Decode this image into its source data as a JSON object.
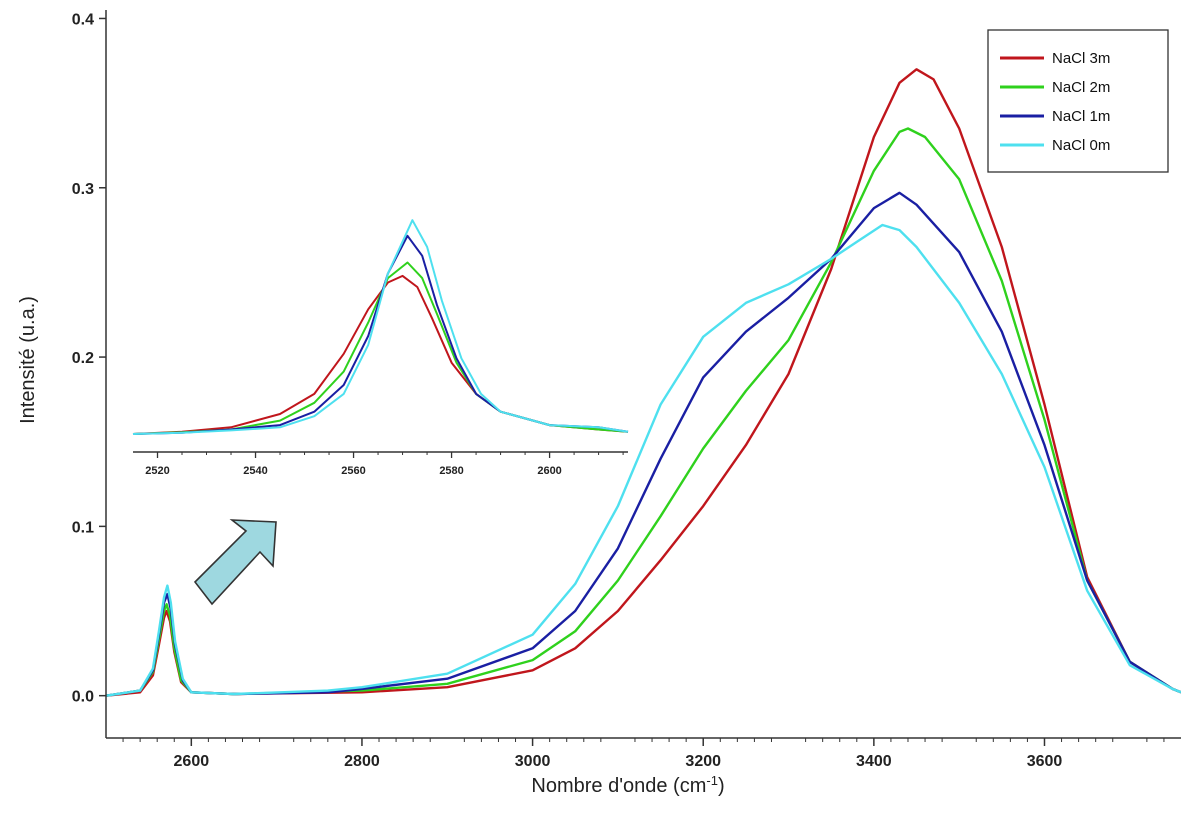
{
  "chart_data": [
    {
      "type": "line",
      "title": "",
      "xlabel": "Nombre d'onde (cm",
      "xlabel_superscript": "-1",
      "xlabel_suffix": ")",
      "ylabel": "Intensité (u.a.)",
      "xlim": [
        2500,
        3760
      ],
      "ylim": [
        -0.025,
        0.405
      ],
      "x_ticks": [
        2600,
        2800,
        3000,
        3200,
        3400,
        3600
      ],
      "x_tick_labels": [
        "2600",
        "2800",
        "3000",
        "3200",
        "3400",
        "3600"
      ],
      "y_ticks": [
        0.0,
        0.1,
        0.2,
        0.3,
        0.4
      ],
      "y_tick_labels": [
        "0.0",
        "0.1",
        "0.2",
        "0.3",
        "0.4"
      ],
      "grid": false,
      "legend_position": "top-right",
      "series": [
        {
          "name": "NaCl 3m",
          "color": "#c0161c",
          "points": [
            [
              2500,
              0.0
            ],
            [
              2540,
              0.002
            ],
            [
              2555,
              0.012
            ],
            [
              2562,
              0.03
            ],
            [
              2568,
              0.046
            ],
            [
              2571,
              0.05
            ],
            [
              2575,
              0.044
            ],
            [
              2580,
              0.026
            ],
            [
              2588,
              0.008
            ],
            [
              2600,
              0.002
            ],
            [
              2650,
              0.001
            ],
            [
              2800,
              0.002
            ],
            [
              2900,
              0.005
            ],
            [
              3000,
              0.015
            ],
            [
              3050,
              0.028
            ],
            [
              3100,
              0.05
            ],
            [
              3150,
              0.08
            ],
            [
              3200,
              0.112
            ],
            [
              3250,
              0.148
            ],
            [
              3300,
              0.19
            ],
            [
              3350,
              0.252
            ],
            [
              3400,
              0.33
            ],
            [
              3430,
              0.362
            ],
            [
              3450,
              0.37
            ],
            [
              3470,
              0.364
            ],
            [
              3500,
              0.335
            ],
            [
              3550,
              0.265
            ],
            [
              3600,
              0.172
            ],
            [
              3650,
              0.07
            ],
            [
              3700,
              0.02
            ],
            [
              3750,
              0.004
            ],
            [
              3760,
              0.002
            ]
          ]
        },
        {
          "name": "NaCl 2m",
          "color": "#2fd11d",
          "points": [
            [
              2500,
              0.0
            ],
            [
              2540,
              0.003
            ],
            [
              2555,
              0.014
            ],
            [
              2562,
              0.033
            ],
            [
              2568,
              0.05
            ],
            [
              2571,
              0.054
            ],
            [
              2575,
              0.047
            ],
            [
              2580,
              0.028
            ],
            [
              2588,
              0.009
            ],
            [
              2600,
              0.002
            ],
            [
              2650,
              0.001
            ],
            [
              2800,
              0.003
            ],
            [
              2900,
              0.007
            ],
            [
              3000,
              0.021
            ],
            [
              3050,
              0.038
            ],
            [
              3100,
              0.068
            ],
            [
              3150,
              0.106
            ],
            [
              3200,
              0.146
            ],
            [
              3250,
              0.18
            ],
            [
              3300,
              0.21
            ],
            [
              3350,
              0.256
            ],
            [
              3400,
              0.31
            ],
            [
              3430,
              0.333
            ],
            [
              3440,
              0.335
            ],
            [
              3460,
              0.33
            ],
            [
              3500,
              0.305
            ],
            [
              3550,
              0.245
            ],
            [
              3600,
              0.163
            ],
            [
              3650,
              0.068
            ],
            [
              3700,
              0.02
            ],
            [
              3750,
              0.004
            ],
            [
              3760,
              0.002
            ]
          ]
        },
        {
          "name": "NaCl 1m",
          "color": "#1a1fa3",
          "points": [
            [
              2500,
              0.0
            ],
            [
              2540,
              0.003
            ],
            [
              2555,
              0.015
            ],
            [
              2562,
              0.036
            ],
            [
              2568,
              0.055
            ],
            [
              2572,
              0.06
            ],
            [
              2576,
              0.051
            ],
            [
              2581,
              0.03
            ],
            [
              2590,
              0.009
            ],
            [
              2600,
              0.002
            ],
            [
              2650,
              0.001
            ],
            [
              2760,
              0.002
            ],
            [
              2800,
              0.004
            ],
            [
              2900,
              0.01
            ],
            [
              3000,
              0.028
            ],
            [
              3050,
              0.05
            ],
            [
              3100,
              0.087
            ],
            [
              3150,
              0.14
            ],
            [
              3200,
              0.188
            ],
            [
              3250,
              0.215
            ],
            [
              3300,
              0.235
            ],
            [
              3350,
              0.258
            ],
            [
              3400,
              0.288
            ],
            [
              3430,
              0.297
            ],
            [
              3450,
              0.29
            ],
            [
              3500,
              0.262
            ],
            [
              3550,
              0.215
            ],
            [
              3600,
              0.148
            ],
            [
              3650,
              0.068
            ],
            [
              3700,
              0.02
            ],
            [
              3750,
              0.004
            ],
            [
              3760,
              0.002
            ]
          ]
        },
        {
          "name": "NaCl 0m",
          "color": "#4ee0ef",
          "points": [
            [
              2500,
              0.0
            ],
            [
              2540,
              0.003
            ],
            [
              2555,
              0.016
            ],
            [
              2562,
              0.038
            ],
            [
              2568,
              0.058
            ],
            [
              2572,
              0.065
            ],
            [
              2576,
              0.055
            ],
            [
              2581,
              0.032
            ],
            [
              2590,
              0.01
            ],
            [
              2600,
              0.002
            ],
            [
              2650,
              0.001
            ],
            [
              2760,
              0.003
            ],
            [
              2800,
              0.005
            ],
            [
              2900,
              0.013
            ],
            [
              3000,
              0.036
            ],
            [
              3050,
              0.066
            ],
            [
              3100,
              0.112
            ],
            [
              3150,
              0.172
            ],
            [
              3200,
              0.212
            ],
            [
              3250,
              0.232
            ],
            [
              3300,
              0.243
            ],
            [
              3350,
              0.258
            ],
            [
              3380,
              0.268
            ],
            [
              3410,
              0.278
            ],
            [
              3430,
              0.275
            ],
            [
              3450,
              0.265
            ],
            [
              3500,
              0.232
            ],
            [
              3550,
              0.19
            ],
            [
              3600,
              0.135
            ],
            [
              3650,
              0.062
            ],
            [
              3700,
              0.018
            ],
            [
              3750,
              0.004
            ],
            [
              3760,
              0.002
            ]
          ]
        }
      ]
    },
    {
      "type": "line",
      "title": "",
      "xlim": [
        2515,
        2616
      ],
      "ylim": [
        0.0,
        0.066
      ],
      "x_ticks": [
        2520,
        2540,
        2560,
        2580,
        2600
      ],
      "x_tick_labels": [
        "2520",
        "2540",
        "2560",
        "2580",
        "2600"
      ],
      "grid": false,
      "series": [
        {
          "name": "NaCl 3m",
          "color": "#c0161c",
          "points": [
            [
              2515,
              0.0
            ],
            [
              2525,
              0.0005
            ],
            [
              2535,
              0.0015
            ],
            [
              2545,
              0.0045
            ],
            [
              2552,
              0.009
            ],
            [
              2558,
              0.018
            ],
            [
              2563,
              0.028
            ],
            [
              2567,
              0.034
            ],
            [
              2570,
              0.0355
            ],
            [
              2573,
              0.033
            ],
            [
              2576,
              0.026
            ],
            [
              2580,
              0.016
            ],
            [
              2585,
              0.009
            ],
            [
              2590,
              0.005
            ],
            [
              2600,
              0.002
            ],
            [
              2610,
              0.001
            ],
            [
              2616,
              0.0005
            ]
          ]
        },
        {
          "name": "NaCl 2m",
          "color": "#2fd11d",
          "points": [
            [
              2515,
              0.0
            ],
            [
              2525,
              0.0004
            ],
            [
              2535,
              0.001
            ],
            [
              2545,
              0.003
            ],
            [
              2552,
              0.007
            ],
            [
              2558,
              0.014
            ],
            [
              2563,
              0.025
            ],
            [
              2567,
              0.035
            ],
            [
              2571,
              0.0385
            ],
            [
              2574,
              0.035
            ],
            [
              2577,
              0.027
            ],
            [
              2581,
              0.016
            ],
            [
              2585,
              0.009
            ],
            [
              2590,
              0.005
            ],
            [
              2600,
              0.002
            ],
            [
              2610,
              0.001
            ],
            [
              2616,
              0.0005
            ]
          ]
        },
        {
          "name": "NaCl 1m",
          "color": "#1a1fa3",
          "points": [
            [
              2515,
              0.0
            ],
            [
              2525,
              0.0003
            ],
            [
              2535,
              0.001
            ],
            [
              2545,
              0.002
            ],
            [
              2552,
              0.005
            ],
            [
              2558,
              0.011
            ],
            [
              2563,
              0.022
            ],
            [
              2567,
              0.036
            ],
            [
              2571,
              0.0445
            ],
            [
              2574,
              0.04
            ],
            [
              2577,
              0.029
            ],
            [
              2581,
              0.017
            ],
            [
              2585,
              0.009
            ],
            [
              2590,
              0.005
            ],
            [
              2600,
              0.002
            ],
            [
              2610,
              0.0015
            ],
            [
              2616,
              0.0005
            ]
          ]
        },
        {
          "name": "NaCl 0m",
          "color": "#4ee0ef",
          "points": [
            [
              2515,
              0.0
            ],
            [
              2525,
              0.0003
            ],
            [
              2535,
              0.0008
            ],
            [
              2545,
              0.0015
            ],
            [
              2552,
              0.004
            ],
            [
              2558,
              0.009
            ],
            [
              2563,
              0.02
            ],
            [
              2567,
              0.036
            ],
            [
              2572,
              0.048
            ],
            [
              2575,
              0.042
            ],
            [
              2578,
              0.03
            ],
            [
              2582,
              0.017
            ],
            [
              2586,
              0.009
            ],
            [
              2590,
              0.005
            ],
            [
              2600,
              0.002
            ],
            [
              2610,
              0.0015
            ],
            [
              2616,
              0.0005
            ]
          ]
        }
      ]
    }
  ],
  "arrow": {
    "fill": "#9ed8e0",
    "stroke": "#333333"
  }
}
